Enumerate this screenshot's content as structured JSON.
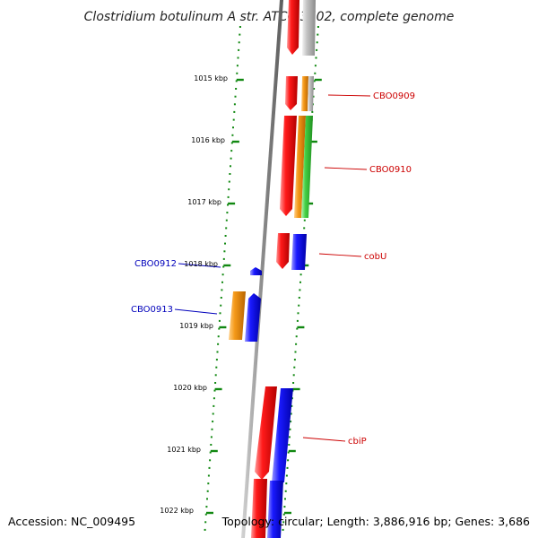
{
  "title": "Clostridium botulinum A str. ATCC 3502, complete genome",
  "accession": "Accession: NC_009495",
  "topology": "Topology: circular; Length: 3,886,916 bp; Genes: 3,686",
  "scale_labels": [
    "1015 kbp",
    "1016 kbp",
    "1017 kbp",
    "1018 kbp",
    "1019 kbp",
    "1020 kbp",
    "1021 kbp",
    "1022 kbp"
  ],
  "gene_labels": {
    "cbo0909": "CBO0909",
    "cbo0910": "CBO0910",
    "cobu": "cobU",
    "cbo0912": "CBO0912",
    "cbo0913": "CBO0913",
    "cbip": "cbiP"
  },
  "colors": {
    "forward_label": "#cc0000",
    "reverse_label": "#0000bb",
    "ticks": "#118811",
    "cds_red": "#ee0000",
    "cds_orange": "#ee8800",
    "cds_green": "#33cc33",
    "cds_grey": "#b8b8b8",
    "cds_blue": "#0000ee",
    "backbone": "#888888"
  }
}
